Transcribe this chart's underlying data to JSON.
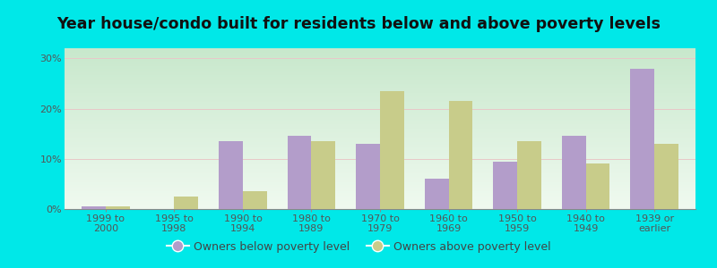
{
  "title": "Year house/condo built for residents below and above poverty levels",
  "categories": [
    "1999 to\n2000",
    "1995 to\n1998",
    "1990 to\n1994",
    "1980 to\n1989",
    "1970 to\n1979",
    "1960 to\n1969",
    "1950 to\n1959",
    "1940 to\n1949",
    "1939 or\nearlier"
  ],
  "below_poverty": [
    0.5,
    0.0,
    13.5,
    14.5,
    13.0,
    6.0,
    9.5,
    14.5,
    28.0
  ],
  "above_poverty": [
    0.5,
    2.5,
    3.5,
    13.5,
    23.5,
    21.5,
    13.5,
    9.0,
    13.0
  ],
  "below_color": "#b39dca",
  "above_color": "#c8cc8a",
  "bg_outer": "#00e8e8",
  "ylabel_ticks": [
    0,
    10,
    20,
    30
  ],
  "ylim": [
    0,
    32
  ],
  "bar_width": 0.35,
  "legend_below": "Owners below poverty level",
  "legend_above": "Owners above poverty level",
  "title_fontsize": 12.5,
  "tick_fontsize": 8,
  "legend_fontsize": 9,
  "grid_color": "#e0ece0",
  "bg_top_color": "#c8e8cc",
  "bg_bottom_color": "#f0faf0"
}
